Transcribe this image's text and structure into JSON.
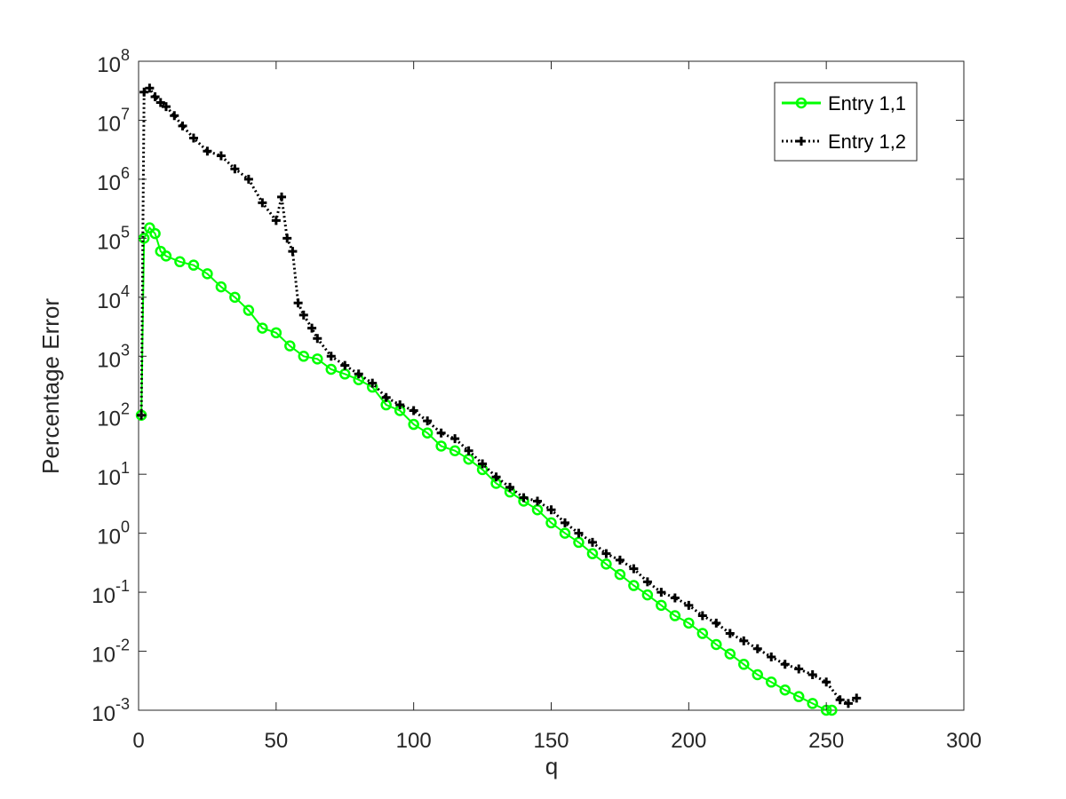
{
  "chart_data": {
    "type": "line",
    "title": "",
    "xlabel": "q",
    "ylabel": "Percentage  Error",
    "xlim": [
      0,
      300
    ],
    "ylim": [
      0.001,
      100000000
    ],
    "yscale": "log",
    "x_ticks": [
      0,
      50,
      100,
      150,
      200,
      250,
      300
    ],
    "y_ticks": [
      {
        "value": 0.001,
        "base": "10",
        "exp": "-3"
      },
      {
        "value": 0.01,
        "base": "10",
        "exp": "-2"
      },
      {
        "value": 0.1,
        "base": "10",
        "exp": "-1"
      },
      {
        "value": 1,
        "base": "10",
        "exp": "0"
      },
      {
        "value": 10,
        "base": "10",
        "exp": "1"
      },
      {
        "value": 100,
        "base": "10",
        "exp": "2"
      },
      {
        "value": 1000,
        "base": "10",
        "exp": "3"
      },
      {
        "value": 10000,
        "base": "10",
        "exp": "4"
      },
      {
        "value": 100000,
        "base": "10",
        "exp": "5"
      },
      {
        "value": 1000000,
        "base": "10",
        "exp": "6"
      },
      {
        "value": 10000000,
        "base": "10",
        "exp": "7"
      },
      {
        "value": 100000000,
        "base": "10",
        "exp": "8"
      }
    ],
    "grid": false,
    "legend_position": "top-right",
    "series": [
      {
        "name": "Entry 1,1",
        "color": "#00ff00",
        "marker": "circle",
        "line_style": "solid",
        "points": [
          [
            1,
            100
          ],
          [
            2,
            100000
          ],
          [
            4,
            150000
          ],
          [
            6,
            120000
          ],
          [
            8,
            60000
          ],
          [
            10,
            50000
          ],
          [
            15,
            40000
          ],
          [
            20,
            35000
          ],
          [
            25,
            25000
          ],
          [
            30,
            15000
          ],
          [
            35,
            10000
          ],
          [
            40,
            6000
          ],
          [
            45,
            3000
          ],
          [
            50,
            2500
          ],
          [
            55,
            1500
          ],
          [
            60,
            1000
          ],
          [
            65,
            900
          ],
          [
            70,
            600
          ],
          [
            75,
            500
          ],
          [
            80,
            400
          ],
          [
            85,
            300
          ],
          [
            90,
            150
          ],
          [
            95,
            120
          ],
          [
            100,
            70
          ],
          [
            105,
            50
          ],
          [
            110,
            30
          ],
          [
            115,
            25
          ],
          [
            120,
            18
          ],
          [
            125,
            12
          ],
          [
            130,
            7
          ],
          [
            135,
            5
          ],
          [
            140,
            3.5
          ],
          [
            145,
            2.5
          ],
          [
            150,
            1.5
          ],
          [
            155,
            1.0
          ],
          [
            160,
            0.7
          ],
          [
            165,
            0.45
          ],
          [
            170,
            0.3
          ],
          [
            175,
            0.2
          ],
          [
            180,
            0.13
          ],
          [
            185,
            0.09
          ],
          [
            190,
            0.06
          ],
          [
            195,
            0.04
          ],
          [
            200,
            0.03
          ],
          [
            205,
            0.02
          ],
          [
            210,
            0.013
          ],
          [
            215,
            0.009
          ],
          [
            220,
            0.006
          ],
          [
            225,
            0.004
          ],
          [
            230,
            0.003
          ],
          [
            235,
            0.0022
          ],
          [
            240,
            0.0017
          ],
          [
            245,
            0.0013
          ],
          [
            250,
            0.001
          ],
          [
            252,
            0.001
          ]
        ]
      },
      {
        "name": "Entry 1,2",
        "color": "#000000",
        "marker": "plus",
        "line_style": "dotted",
        "points": [
          [
            1,
            100
          ],
          [
            2,
            30000000
          ],
          [
            4,
            35000000
          ],
          [
            6,
            25000000
          ],
          [
            8,
            20000000
          ],
          [
            10,
            17000000
          ],
          [
            13,
            12000000
          ],
          [
            16,
            8000000
          ],
          [
            20,
            5000000
          ],
          [
            25,
            3000000
          ],
          [
            30,
            2500000
          ],
          [
            35,
            1500000
          ],
          [
            40,
            1000000
          ],
          [
            45,
            400000
          ],
          [
            50,
            200000
          ],
          [
            52,
            500000
          ],
          [
            54,
            100000
          ],
          [
            56,
            60000
          ],
          [
            58,
            8000
          ],
          [
            60,
            5000
          ],
          [
            63,
            3000
          ],
          [
            65,
            2000
          ],
          [
            70,
            1000
          ],
          [
            75,
            700
          ],
          [
            80,
            500
          ],
          [
            85,
            350
          ],
          [
            90,
            200
          ],
          [
            95,
            150
          ],
          [
            100,
            120
          ],
          [
            105,
            80
          ],
          [
            110,
            50
          ],
          [
            115,
            40
          ],
          [
            120,
            25
          ],
          [
            125,
            15
          ],
          [
            130,
            9
          ],
          [
            135,
            6
          ],
          [
            140,
            4
          ],
          [
            145,
            3.5
          ],
          [
            150,
            2.5
          ],
          [
            155,
            1.5
          ],
          [
            160,
            1.0
          ],
          [
            165,
            0.7
          ],
          [
            170,
            0.45
          ],
          [
            175,
            0.35
          ],
          [
            180,
            0.25
          ],
          [
            185,
            0.15
          ],
          [
            190,
            0.1
          ],
          [
            195,
            0.08
          ],
          [
            200,
            0.06
          ],
          [
            205,
            0.04
          ],
          [
            210,
            0.03
          ],
          [
            215,
            0.02
          ],
          [
            220,
            0.015
          ],
          [
            225,
            0.011
          ],
          [
            230,
            0.008
          ],
          [
            235,
            0.006
          ],
          [
            240,
            0.005
          ],
          [
            245,
            0.004
          ],
          [
            250,
            0.003
          ],
          [
            255,
            0.0015
          ],
          [
            258,
            0.0013
          ],
          [
            261,
            0.0016
          ]
        ]
      }
    ]
  }
}
